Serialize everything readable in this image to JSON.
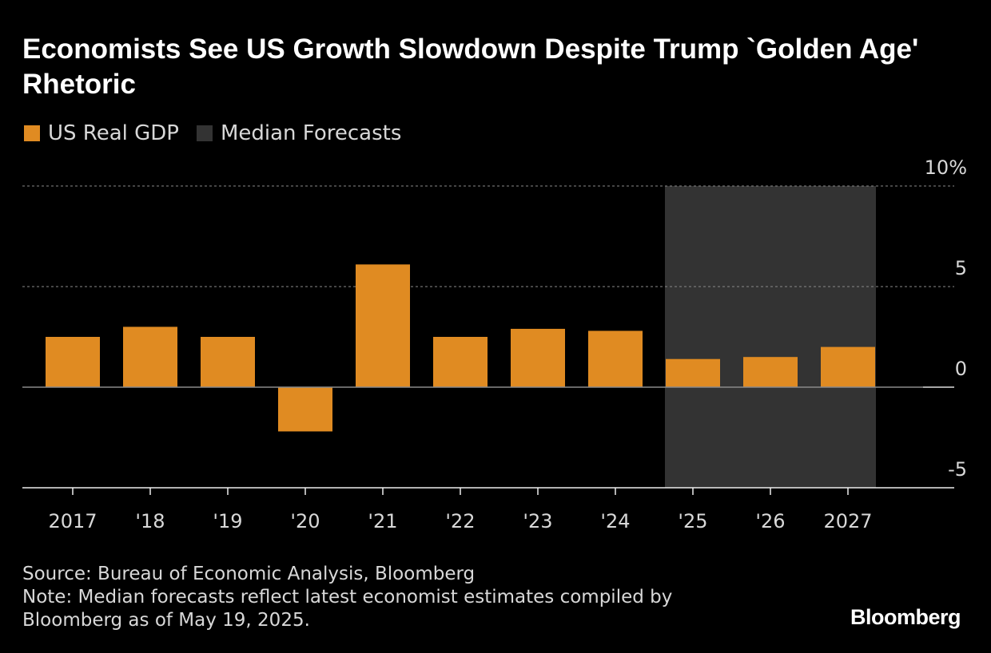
{
  "title": "Economists See US Growth Slowdown Despite Trump `Golden Age' Rhetoric",
  "legend": [
    {
      "label": "US Real GDP",
      "color": "#e08b22"
    },
    {
      "label": "Median Forecasts",
      "color": "#333333"
    }
  ],
  "chart_data": {
    "type": "bar",
    "title": "Economists See US Growth Slowdown Despite Trump `Golden Age' Rhetoric",
    "categories": [
      "2017",
      "'18",
      "'19",
      "'20",
      "'21",
      "'22",
      "'23",
      "'24",
      "'25",
      "'26",
      "2027"
    ],
    "series": [
      {
        "name": "US Real GDP",
        "values": [
          2.5,
          3.0,
          2.5,
          -2.2,
          6.1,
          2.5,
          2.9,
          2.8,
          1.4,
          1.5,
          2.0
        ],
        "color": "#e08b22"
      }
    ],
    "shaded_region": {
      "name": "Median Forecasts",
      "from": "'25",
      "to": "2027",
      "color": "#333333"
    },
    "y_ticks": [
      {
        "value": 10,
        "label": "10%"
      },
      {
        "value": 5,
        "label": "5"
      },
      {
        "value": 0,
        "label": "0"
      },
      {
        "value": -5,
        "label": "-5"
      }
    ],
    "ylim": [
      -5,
      10
    ],
    "y_axis_side": "right",
    "grid": true,
    "legend_position": "top-left"
  },
  "footer": {
    "source": "Source: Bureau of Economic Analysis, Bloomberg",
    "note_line1": "Note: Median forecasts reflect latest economist estimates compiled by",
    "note_line2": "Bloomberg as of May 19, 2025.",
    "logo": "Bloomberg"
  }
}
